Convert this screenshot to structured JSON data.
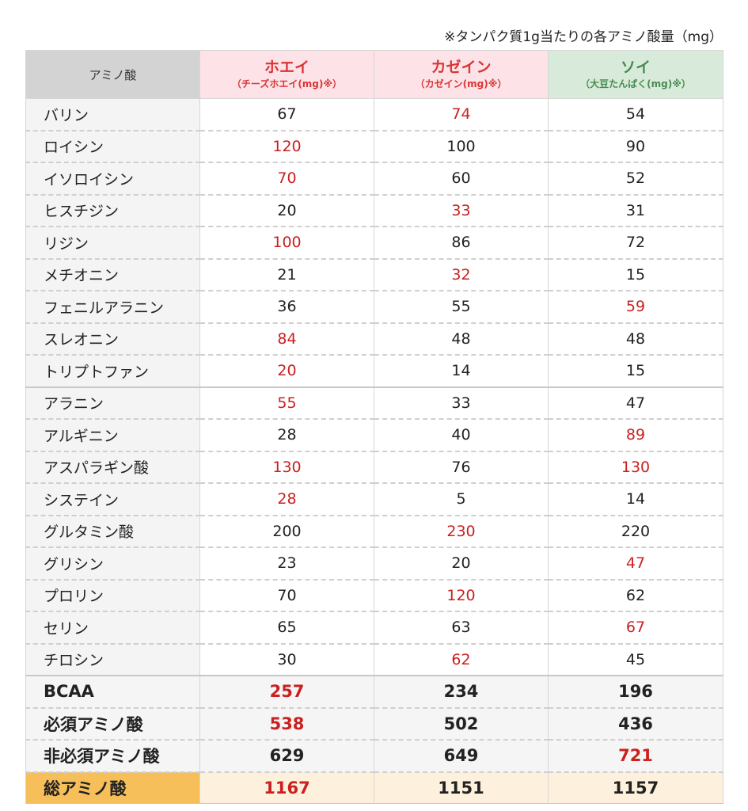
{
  "note": "※タンパク質1g当たりの各アミノ酸量（mg）",
  "header": {
    "label": "アミノ酸",
    "whey": {
      "name": "ホエイ",
      "sub": "（チーズホエイ(mg)※）"
    },
    "casein": {
      "name": "カゼイン",
      "sub": "（カゼイン(mg)※）"
    },
    "soy": {
      "name": "ソイ",
      "sub": "（大豆たんぱく(mg)※）"
    }
  },
  "colors": {
    "highlight": "#cc1f1f",
    "whey_header": "#fde3e7",
    "soy_header": "#d8ebdb",
    "total_label": "#f7bf5a"
  },
  "rows": [
    {
      "name": "バリン",
      "whey": "67",
      "casein": "74",
      "soy": "54",
      "max": "casein"
    },
    {
      "name": "ロイシン",
      "whey": "120",
      "casein": "100",
      "soy": "90",
      "max": "whey"
    },
    {
      "name": "イソロイシン",
      "whey": "70",
      "casein": "60",
      "soy": "52",
      "max": "whey"
    },
    {
      "name": "ヒスチジン",
      "whey": "20",
      "casein": "33",
      "soy": "31",
      "max": "casein"
    },
    {
      "name": "リジン",
      "whey": "100",
      "casein": "86",
      "soy": "72",
      "max": "whey"
    },
    {
      "name": "メチオニン",
      "whey": "21",
      "casein": "32",
      "soy": "15",
      "max": "casein"
    },
    {
      "name": "フェニルアラニン",
      "whey": "36",
      "casein": "55",
      "soy": "59",
      "max": "soy"
    },
    {
      "name": "スレオニン",
      "whey": "84",
      "casein": "48",
      "soy": "48",
      "max": "whey"
    },
    {
      "name": "トリプトファン",
      "whey": "20",
      "casein": "14",
      "soy": "15",
      "max": "whey"
    },
    {
      "name": "アラニン",
      "whey": "55",
      "casein": "33",
      "soy": "47",
      "max": "whey"
    },
    {
      "name": "アルギニン",
      "whey": "28",
      "casein": "40",
      "soy": "89",
      "max": "soy"
    },
    {
      "name": "アスパラギン酸",
      "whey": "130",
      "casein": "76",
      "soy": "130",
      "max": "whey_soy"
    },
    {
      "name": "システイン",
      "whey": "28",
      "casein": "5",
      "soy": "14",
      "max": "whey"
    },
    {
      "name": "グルタミン酸",
      "whey": "200",
      "casein": "230",
      "soy": "220",
      "max": "casein"
    },
    {
      "name": "グリシン",
      "whey": "23",
      "casein": "20",
      "soy": "47",
      "max": "soy"
    },
    {
      "name": "プロリン",
      "whey": "70",
      "casein": "120",
      "soy": "62",
      "max": "casein"
    },
    {
      "name": "セリン",
      "whey": "65",
      "casein": "63",
      "soy": "67",
      "max": "soy"
    },
    {
      "name": "チロシン",
      "whey": "30",
      "casein": "62",
      "soy": "45",
      "max": "casein"
    }
  ],
  "summary": [
    {
      "name": "BCAA",
      "whey": "257",
      "casein": "234",
      "soy": "196",
      "max": "whey"
    },
    {
      "name": "必須アミノ酸",
      "whey": "538",
      "casein": "502",
      "soy": "436",
      "max": "whey"
    },
    {
      "name": "非必須アミノ酸",
      "whey": "629",
      "casein": "649",
      "soy": "721",
      "max": "soy"
    }
  ],
  "total": {
    "name": "総アミノ酸",
    "whey": "1167",
    "casein": "1151",
    "soy": "1157",
    "max": "whey"
  }
}
